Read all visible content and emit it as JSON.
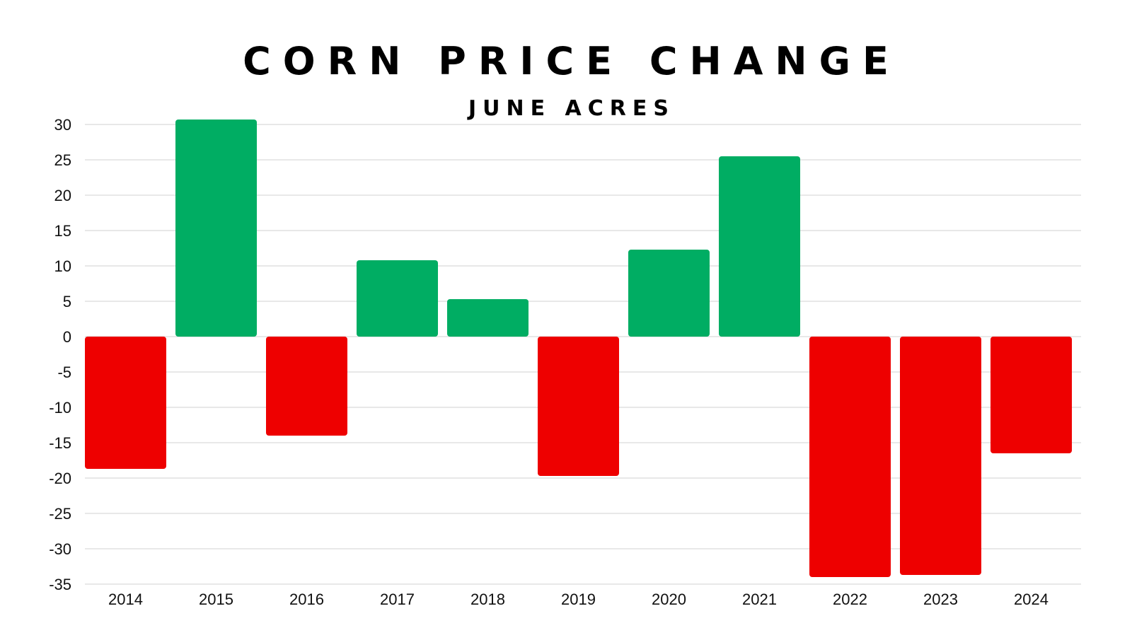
{
  "chart_data": {
    "type": "bar",
    "title": "CORN PRICE CHANGE",
    "subtitle": "JUNE ACRES",
    "xlabel": "",
    "ylabel": "",
    "categories": [
      "2014",
      "2015",
      "2016",
      "2017",
      "2018",
      "2019",
      "2020",
      "2021",
      "2022",
      "2023",
      "2024"
    ],
    "values": [
      -18.7,
      30.7,
      -14,
      10.8,
      5.3,
      -19.7,
      12.3,
      25.5,
      -34,
      -33.7,
      -16.5
    ],
    "ylim": [
      -35,
      30
    ],
    "yticks": [
      30,
      25,
      20,
      15,
      10,
      5,
      0,
      -5,
      -10,
      -15,
      -20,
      -25,
      -30,
      -35
    ],
    "grid": true,
    "legend": "none",
    "colors": {
      "positive": "#00ad63",
      "negative": "#ee0000"
    }
  }
}
